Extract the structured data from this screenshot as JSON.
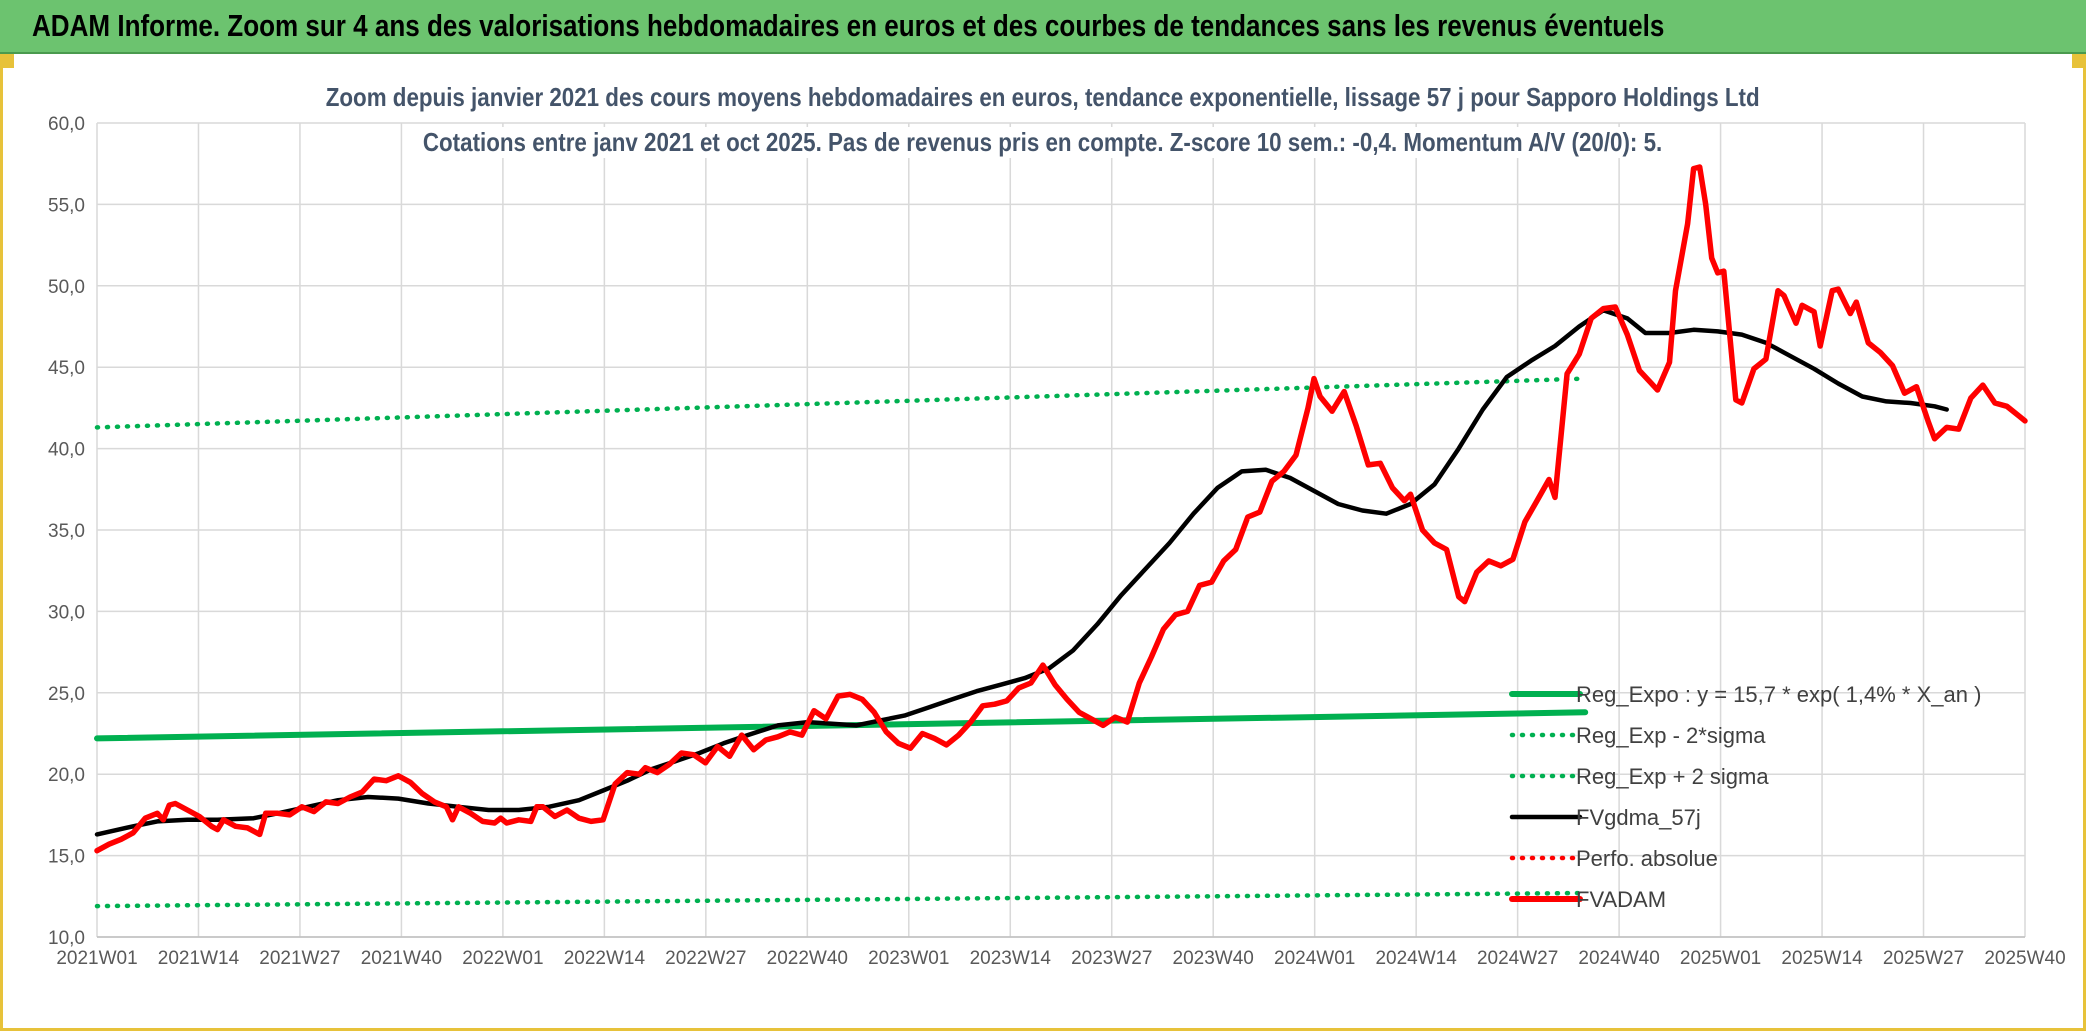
{
  "banner": {
    "title": "ADAM Informe. Zoom sur 4 ans des valorisations hebdomadaires en euros et des courbes de tendances sans les revenus éventuels"
  },
  "colors": {
    "banner_bg": "#6cc36f",
    "border": "#e7c23a",
    "reg_expo": "#00b050",
    "fvgdma": "#000000",
    "fvadam": "#ff0000",
    "perfo": "#ff0000",
    "title": "#44546a"
  },
  "chart_data": {
    "type": "line",
    "title_line1": "Zoom depuis janvier 2021 des cours moyens hebdomadaires en euros, tendance exponentielle, lissage 57 j pour Sapporo Holdings Ltd",
    "title_line2": "Cotations entre janv 2021 et oct 2025. Pas de revenus pris en compte. Z-score 10 sem.: -0,4. Momentum A/V (20/0): 5.",
    "ylim": [
      10,
      60
    ],
    "yticks": [
      "10,0",
      "15,0",
      "20,0",
      "25,0",
      "30,0",
      "35,0",
      "40,0",
      "45,0",
      "50,0",
      "55,0",
      "60,0"
    ],
    "xticks": [
      "2021W01",
      "2021W14",
      "2021W27",
      "2021W40",
      "2022W01",
      "2022W14",
      "2022W27",
      "2022W40",
      "2023W01",
      "2023W14",
      "2023W27",
      "2023W40",
      "2024W01",
      "2024W14",
      "2024W27",
      "2024W40",
      "2025W01",
      "2025W14",
      "2025W27",
      "2025W40"
    ],
    "x_weeks_range": [
      0,
      247
    ],
    "legend": [
      {
        "label": "Reg_Expo : y = 15,7 * exp( 1,4% *  X_an )",
        "style": "solid-thick",
        "color": "#00b050"
      },
      {
        "label": "Reg_Exp - 2*sigma",
        "style": "dotted",
        "color": "#00b050"
      },
      {
        "label": "Reg_Exp + 2 sigma",
        "style": "dotted",
        "color": "#00b050"
      },
      {
        "label": "FVgdma_57j",
        "style": "solid",
        "color": "#000000"
      },
      {
        "label": "Perfo. absolue",
        "style": "dotted",
        "color": "#ff0000"
      },
      {
        "label": "FVADAM",
        "style": "solid-thick",
        "color": "#ff0000"
      }
    ],
    "series": [
      {
        "name": "Reg_Expo",
        "points": [
          [
            0,
            22.2
          ],
          [
            247,
            23.8
          ]
        ]
      },
      {
        "name": "Reg_Exp - 2*sigma",
        "points": [
          [
            0,
            11.9
          ],
          [
            247,
            12.7
          ]
        ]
      },
      {
        "name": "Reg_Exp + 2 sigma",
        "points": [
          [
            0,
            41.3
          ],
          [
            247,
            44.3
          ]
        ]
      },
      {
        "name": "FVgdma_57j",
        "points": [
          [
            0,
            16.3
          ],
          [
            6,
            16.8
          ],
          [
            10,
            17.1
          ],
          [
            15,
            17.2
          ],
          [
            20,
            17.2
          ],
          [
            26,
            17.3
          ],
          [
            30,
            17.6
          ],
          [
            35,
            18.0
          ],
          [
            40,
            18.4
          ],
          [
            45,
            18.6
          ],
          [
            50,
            18.5
          ],
          [
            55,
            18.2
          ],
          [
            60,
            18.0
          ],
          [
            65,
            17.8
          ],
          [
            70,
            17.8
          ],
          [
            75,
            18.0
          ],
          [
            80,
            18.4
          ],
          [
            84,
            19.0
          ],
          [
            88,
            19.6
          ],
          [
            92,
            20.3
          ],
          [
            96,
            20.8
          ],
          [
            100,
            21.3
          ],
          [
            104,
            21.9
          ],
          [
            108,
            22.4
          ],
          [
            113,
            23.0
          ],
          [
            118,
            23.2
          ],
          [
            122,
            23.1
          ],
          [
            126,
            23.0
          ],
          [
            130,
            23.3
          ],
          [
            134,
            23.6
          ],
          [
            138,
            24.1
          ],
          [
            142,
            24.6
          ],
          [
            146,
            25.1
          ],
          [
            150,
            25.5
          ],
          [
            154,
            25.9
          ],
          [
            158,
            26.5
          ],
          [
            162,
            27.6
          ],
          [
            166,
            29.2
          ],
          [
            170,
            31.0
          ],
          [
            174,
            32.6
          ],
          [
            178,
            34.2
          ],
          [
            182,
            36.0
          ],
          [
            186,
            37.6
          ],
          [
            190,
            38.6
          ],
          [
            194,
            38.7
          ],
          [
            198,
            38.2
          ],
          [
            202,
            37.4
          ],
          [
            206,
            36.6
          ],
          [
            210,
            36.2
          ],
          [
            214,
            36.0
          ],
          [
            218,
            36.6
          ],
          [
            222,
            37.8
          ],
          [
            226,
            40.0
          ],
          [
            230,
            42.4
          ],
          [
            234,
            44.4
          ],
          [
            238,
            45.4
          ],
          [
            242,
            46.3
          ],
          [
            246,
            47.5
          ],
          [
            250,
            48.5
          ],
          [
            254,
            48.0
          ],
          [
            257,
            47.1
          ],
          [
            261,
            47.1
          ],
          [
            265,
            47.3
          ],
          [
            269,
            47.2
          ],
          [
            273,
            47.0
          ],
          [
            277,
            46.5
          ],
          [
            281,
            45.7
          ],
          [
            285,
            44.9
          ],
          [
            289,
            44.0
          ],
          [
            293,
            43.2
          ],
          [
            297,
            42.9
          ],
          [
            301,
            42.8
          ],
          [
            305,
            42.6
          ],
          [
            307,
            42.4
          ]
        ]
      },
      {
        "name": "FVADAM",
        "points": [
          [
            0,
            15.3
          ],
          [
            2,
            15.7
          ],
          [
            4,
            16.0
          ],
          [
            6,
            16.4
          ],
          [
            8,
            17.3
          ],
          [
            10,
            17.6
          ],
          [
            11,
            17.2
          ],
          [
            12,
            18.1
          ],
          [
            13,
            18.2
          ],
          [
            15,
            17.8
          ],
          [
            17,
            17.4
          ],
          [
            19,
            16.8
          ],
          [
            20,
            16.6
          ],
          [
            21,
            17.2
          ],
          [
            23,
            16.8
          ],
          [
            25,
            16.7
          ],
          [
            27,
            16.3
          ],
          [
            28,
            17.6
          ],
          [
            30,
            17.6
          ],
          [
            32,
            17.5
          ],
          [
            34,
            18.0
          ],
          [
            36,
            17.7
          ],
          [
            38,
            18.3
          ],
          [
            40,
            18.2
          ],
          [
            42,
            18.6
          ],
          [
            44,
            18.9
          ],
          [
            46,
            19.7
          ],
          [
            48,
            19.6
          ],
          [
            50,
            19.9
          ],
          [
            52,
            19.5
          ],
          [
            54,
            18.8
          ],
          [
            56,
            18.3
          ],
          [
            58,
            18.0
          ],
          [
            59,
            17.2
          ],
          [
            60,
            18.0
          ],
          [
            62,
            17.6
          ],
          [
            64,
            17.1
          ],
          [
            66,
            17.0
          ],
          [
            67,
            17.3
          ],
          [
            68,
            17.0
          ],
          [
            70,
            17.2
          ],
          [
            72,
            17.1
          ],
          [
            73,
            18.0
          ],
          [
            74,
            18.0
          ],
          [
            76,
            17.4
          ],
          [
            78,
            17.8
          ],
          [
            80,
            17.3
          ],
          [
            82,
            17.1
          ],
          [
            84,
            17.2
          ],
          [
            86,
            19.4
          ],
          [
            88,
            20.1
          ],
          [
            90,
            20.0
          ],
          [
            91,
            20.4
          ],
          [
            93,
            20.1
          ],
          [
            95,
            20.6
          ],
          [
            97,
            21.3
          ],
          [
            99,
            21.2
          ],
          [
            101,
            20.7
          ],
          [
            103,
            21.7
          ],
          [
            105,
            21.1
          ],
          [
            107,
            22.4
          ],
          [
            109,
            21.5
          ],
          [
            111,
            22.1
          ],
          [
            113,
            22.3
          ],
          [
            115,
            22.6
          ],
          [
            117,
            22.4
          ],
          [
            119,
            23.9
          ],
          [
            121,
            23.4
          ],
          [
            123,
            24.8
          ],
          [
            125,
            24.9
          ],
          [
            127,
            24.6
          ],
          [
            129,
            23.8
          ],
          [
            131,
            22.6
          ],
          [
            133,
            21.9
          ],
          [
            135,
            21.6
          ],
          [
            137,
            22.5
          ],
          [
            139,
            22.2
          ],
          [
            141,
            21.8
          ],
          [
            143,
            22.4
          ],
          [
            145,
            23.2
          ],
          [
            147,
            24.2
          ],
          [
            149,
            24.3
          ],
          [
            151,
            24.5
          ],
          [
            153,
            25.3
          ],
          [
            155,
            25.6
          ],
          [
            157,
            26.7
          ],
          [
            159,
            25.5
          ],
          [
            161,
            24.6
          ],
          [
            163,
            23.8
          ],
          [
            165,
            23.4
          ],
          [
            167,
            23.0
          ],
          [
            169,
            23.5
          ],
          [
            171,
            23.2
          ],
          [
            173,
            25.6
          ],
          [
            175,
            27.2
          ],
          [
            177,
            28.9
          ],
          [
            179,
            29.8
          ],
          [
            181,
            30.0
          ],
          [
            183,
            31.6
          ],
          [
            185,
            31.8
          ],
          [
            187,
            33.1
          ],
          [
            189,
            33.8
          ],
          [
            191,
            35.8
          ],
          [
            193,
            36.1
          ],
          [
            195,
            38.0
          ],
          [
            197,
            38.6
          ],
          [
            199,
            39.6
          ],
          [
            201,
            42.5
          ],
          [
            202,
            44.3
          ],
          [
            203,
            43.2
          ],
          [
            205,
            42.3
          ],
          [
            207,
            43.5
          ],
          [
            209,
            41.4
          ],
          [
            211,
            39.0
          ],
          [
            213,
            39.1
          ],
          [
            215,
            37.6
          ],
          [
            217,
            36.8
          ],
          [
            218,
            37.2
          ],
          [
            220,
            35.0
          ],
          [
            222,
            34.2
          ],
          [
            224,
            33.8
          ],
          [
            226,
            30.9
          ],
          [
            227,
            30.6
          ],
          [
            229,
            32.4
          ],
          [
            231,
            33.1
          ],
          [
            233,
            32.8
          ],
          [
            235,
            33.2
          ],
          [
            237,
            35.5
          ],
          [
            239,
            36.8
          ],
          [
            241,
            38.1
          ],
          [
            242,
            37.0
          ],
          [
            244,
            44.6
          ],
          [
            246,
            45.8
          ],
          [
            248,
            48.0
          ],
          [
            250,
            48.6
          ],
          [
            252,
            48.7
          ],
          [
            254,
            47.0
          ],
          [
            256,
            44.8
          ],
          [
            258,
            44.0
          ],
          [
            259,
            43.6
          ],
          [
            261,
            45.3
          ],
          [
            262,
            49.7
          ],
          [
            264,
            53.8
          ],
          [
            265,
            57.2
          ],
          [
            266,
            57.3
          ],
          [
            267,
            55.0
          ],
          [
            268,
            51.7
          ],
          [
            269,
            50.8
          ],
          [
            270,
            50.9
          ],
          [
            272,
            43.0
          ],
          [
            273,
            42.8
          ],
          [
            275,
            44.9
          ],
          [
            277,
            45.5
          ],
          [
            279,
            49.7
          ],
          [
            280,
            49.4
          ],
          [
            282,
            47.7
          ],
          [
            283,
            48.8
          ],
          [
            285,
            48.4
          ],
          [
            286,
            46.3
          ],
          [
            288,
            49.7
          ],
          [
            289,
            49.8
          ],
          [
            291,
            48.3
          ],
          [
            292,
            49.0
          ],
          [
            294,
            46.5
          ],
          [
            296,
            45.9
          ],
          [
            298,
            45.1
          ],
          [
            300,
            43.4
          ],
          [
            302,
            43.8
          ],
          [
            304,
            41.6
          ],
          [
            305,
            40.6
          ],
          [
            307,
            41.3
          ],
          [
            309,
            41.2
          ],
          [
            311,
            43.1
          ],
          [
            312,
            43.5
          ],
          [
            313,
            43.9
          ],
          [
            315,
            42.8
          ],
          [
            317,
            42.6
          ],
          [
            319,
            42.0
          ],
          [
            320,
            41.7
          ]
        ]
      }
    ]
  }
}
